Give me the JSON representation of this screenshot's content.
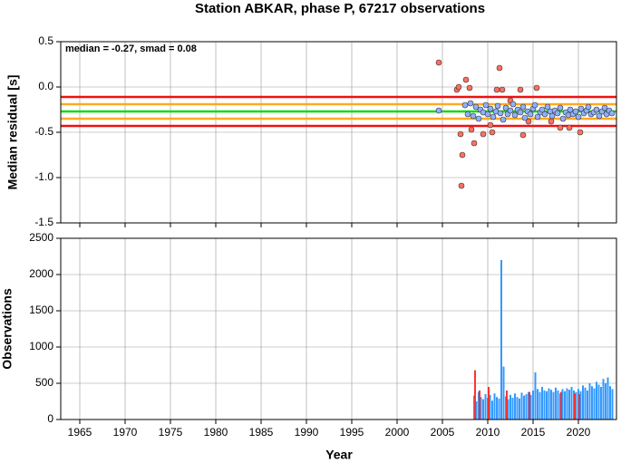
{
  "chart_data": [
    {
      "type": "scatter",
      "title": "Station ABKAR, phase P, 67217 observations",
      "y_label": "Median residual [s]",
      "annotation": "median = -0.27, smad = 0.08",
      "xlim": [
        1962.9,
        2024.2
      ],
      "ylim": [
        -1.5,
        0.5
      ],
      "yticks": [
        0.5,
        {
          "value": 0,
          "label": "0.0"
        },
        -0.5,
        {
          "value": -1,
          "label": "-1.0"
        },
        -1.5
      ],
      "grid": true,
      "hlines": [
        {
          "value": -0.11,
          "color": "#ee1111"
        },
        {
          "value": -0.43,
          "color": "#ee1111"
        },
        {
          "value": -0.19,
          "color": "#ffaa22"
        },
        {
          "value": -0.35,
          "color": "#ffaa22"
        },
        {
          "value": -0.27,
          "color": "#11dd11"
        }
      ],
      "series": [
        {
          "color": "#ff6f61",
          "x": [
            2004.6,
            2006.6,
            2006.8,
            2007.0,
            2007.2,
            2007.1,
            2007.6,
            2008.0,
            2008.5,
            2008.2,
            2009.5,
            2010.3,
            2010.5,
            2011.0,
            2011.3,
            2011.6,
            2013.6,
            2013.9,
            2015.4,
            2017.0,
            2018.0,
            2019.0,
            2020.2,
            2012.5,
            2014.5
          ],
          "values": [
            0.27,
            -0.03,
            0.0,
            -0.52,
            -0.75,
            -1.09,
            0.08,
            -0.01,
            -0.62,
            -0.47,
            -0.52,
            -0.42,
            -0.5,
            -0.03,
            0.21,
            -0.03,
            -0.03,
            -0.53,
            -0.01,
            -0.38,
            -0.45,
            -0.45,
            -0.5,
            -0.15,
            -0.38
          ]
        },
        {
          "color": "#8fb0ff",
          "x": [
            2004.6,
            2007.5,
            2007.8,
            2008.1,
            2008.4,
            2008.7,
            2009.0,
            2009.2,
            2009.5,
            2009.8,
            2010.0,
            2010.3,
            2010.6,
            2010.9,
            2011.1,
            2011.4,
            2011.7,
            2012.0,
            2012.2,
            2012.5,
            2012.8,
            2013.0,
            2013.3,
            2013.6,
            2013.9,
            2014.1,
            2014.4,
            2014.7,
            2015.0,
            2015.2,
            2015.5,
            2015.8,
            2016.0,
            2016.3,
            2016.6,
            2016.9,
            2017.1,
            2017.4,
            2017.7,
            2018.0,
            2018.3,
            2018.6,
            2018.9,
            2019.1,
            2019.4,
            2019.7,
            2020.0,
            2020.3,
            2020.6,
            2020.9,
            2021.1,
            2021.4,
            2021.7,
            2022.0,
            2022.3,
            2022.6,
            2022.9,
            2023.1,
            2023.4,
            2023.7
          ],
          "values": [
            -0.26,
            -0.2,
            -0.3,
            -0.18,
            -0.32,
            -0.22,
            -0.35,
            -0.25,
            -0.28,
            -0.2,
            -0.3,
            -0.24,
            -0.33,
            -0.27,
            -0.21,
            -0.29,
            -0.36,
            -0.23,
            -0.3,
            -0.26,
            -0.19,
            -0.31,
            -0.25,
            -0.28,
            -0.22,
            -0.34,
            -0.27,
            -0.3,
            -0.24,
            -0.2,
            -0.33,
            -0.28,
            -0.25,
            -0.3,
            -0.22,
            -0.27,
            -0.32,
            -0.26,
            -0.29,
            -0.23,
            -0.35,
            -0.28,
            -0.31,
            -0.25,
            -0.3,
            -0.27,
            -0.33,
            -0.24,
            -0.29,
            -0.26,
            -0.22,
            -0.3,
            -0.28,
            -0.25,
            -0.32,
            -0.27,
            -0.23,
            -0.3,
            -0.26,
            -0.29
          ]
        }
      ]
    },
    {
      "type": "bar",
      "y_label": "Observations",
      "x_label": "Year",
      "xlim": [
        1962.9,
        2024.2
      ],
      "ylim": [
        0,
        2500
      ],
      "xticks": [
        1965,
        1970,
        1975,
        1980,
        1985,
        1990,
        1995,
        2000,
        2005,
        2010,
        2015,
        2020
      ],
      "yticks": [
        0,
        500,
        1000,
        1500,
        2000,
        2500
      ],
      "grid": true,
      "series": [
        {
          "color": "#3399ff",
          "x": [
            2008.5,
            2008.75,
            2009,
            2009.25,
            2009.5,
            2009.75,
            2010,
            2010.25,
            2010.5,
            2010.75,
            2011,
            2011.25,
            2011.5,
            2011.75,
            2012,
            2012.25,
            2012.5,
            2012.75,
            2013,
            2013.25,
            2013.5,
            2013.75,
            2014,
            2014.25,
            2014.5,
            2014.75,
            2015,
            2015.25,
            2015.5,
            2015.75,
            2016,
            2016.25,
            2016.5,
            2016.75,
            2017,
            2017.25,
            2017.5,
            2017.75,
            2018,
            2018.25,
            2018.5,
            2018.75,
            2019,
            2019.25,
            2019.5,
            2019.75,
            2020,
            2020.25,
            2020.5,
            2020.75,
            2021,
            2021.25,
            2021.5,
            2021.75,
            2022,
            2022.25,
            2022.5,
            2022.75,
            2023,
            2023.25,
            2023.5,
            2023.75
          ],
          "values": [
            330,
            250,
            380,
            310,
            280,
            350,
            300,
            340,
            260,
            360,
            310,
            290,
            2200,
            730,
            320,
            280,
            340,
            300,
            360,
            310,
            290,
            370,
            330,
            350,
            380,
            340,
            400,
            650,
            420,
            380,
            450,
            400,
            390,
            430,
            410,
            380,
            440,
            400,
            360,
            420,
            390,
            430,
            410,
            450,
            400,
            380,
            420,
            390,
            470,
            440,
            400,
            500,
            460,
            430,
            520,
            480,
            450,
            560,
            500,
            580,
            460,
            420
          ]
        },
        {
          "color": "#ff3333",
          "x": [
            2008.6,
            2009.1,
            2010.1,
            2012.1,
            2014.6,
            2018.1,
            2019.6,
            2020.1
          ],
          "values": [
            680,
            400,
            450,
            400,
            380,
            380,
            360,
            350
          ]
        }
      ]
    }
  ]
}
